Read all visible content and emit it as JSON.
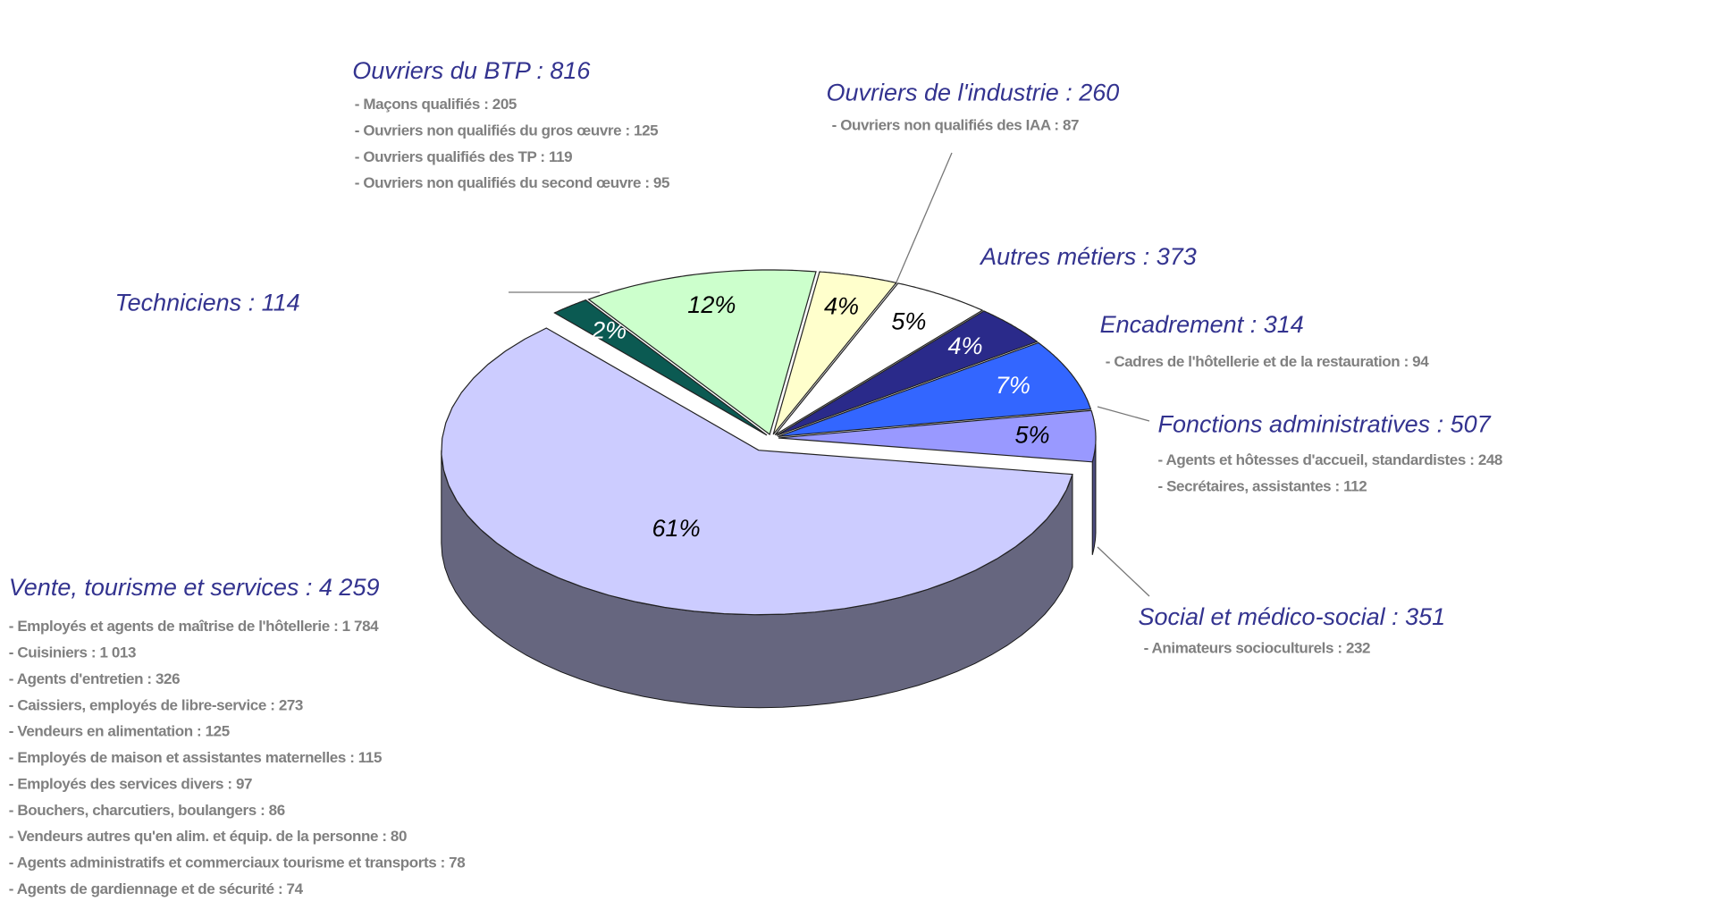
{
  "chart_data": {
    "type": "pie",
    "categories": [
      "Techniciens : 114",
      "Ouvriers du BTP : 816",
      "Ouvriers de l'industrie : 260",
      "Autres métiers : 373",
      "Encadrement : 314",
      "Fonctions administratives : 507",
      "Social et médico-social : 351",
      "Vente, tourisme et services : 4 259"
    ],
    "values": [
      2,
      12,
      4,
      5,
      4,
      7,
      5,
      61
    ],
    "value_labels": [
      "2%",
      "12%",
      "4%",
      "5%",
      "4%",
      "7%",
      "5%",
      "61%"
    ],
    "colors": [
      "#0b5a52",
      "#ccffcc",
      "#ffffcc",
      "#ffffff",
      "#2a2a8a",
      "#3366ff",
      "#9999ff",
      "#ccccff"
    ],
    "details": [
      [],
      [
        "- Maçons qualifiés  : 205",
        "- Ouvriers non qualifiés du gros œuvre : 125",
        "- Ouvriers qualifiés des TP : 119",
        "- Ouvriers non qualifiés du second œuvre  : 95"
      ],
      [
        "- Ouvriers non qualifiés des IAA : 87"
      ],
      [],
      [
        "- Cadres de l'hôtellerie et de la restauration : 94"
      ],
      [
        "- Agents et hôtesses d'accueil, standardistes : 248",
        "- Secrétaires, assistantes : 112"
      ],
      [
        "- Animateurs socioculturels : 232"
      ],
      [
        "- Employés et agents de maîtrise de l'hôtellerie : 1 784",
        "- Cuisiniers : 1 013",
        "- Agents d'entretien : 326",
        "- Caissiers, employés de libre-service : 273",
        "- Vendeurs en alimentation : 125",
        "- Employés de maison et assistantes maternelles : 115",
        "- Employés des services divers : 97",
        "- Bouchers, charcutiers, boulangers : 86",
        "- Vendeurs autres qu'en alim. et équip. de la personne : 80",
        "- Agents administratifs et commerciaux tourisme et transports  : 78",
        "- Agents de gardiennage et de sécurité : 74"
      ]
    ]
  }
}
